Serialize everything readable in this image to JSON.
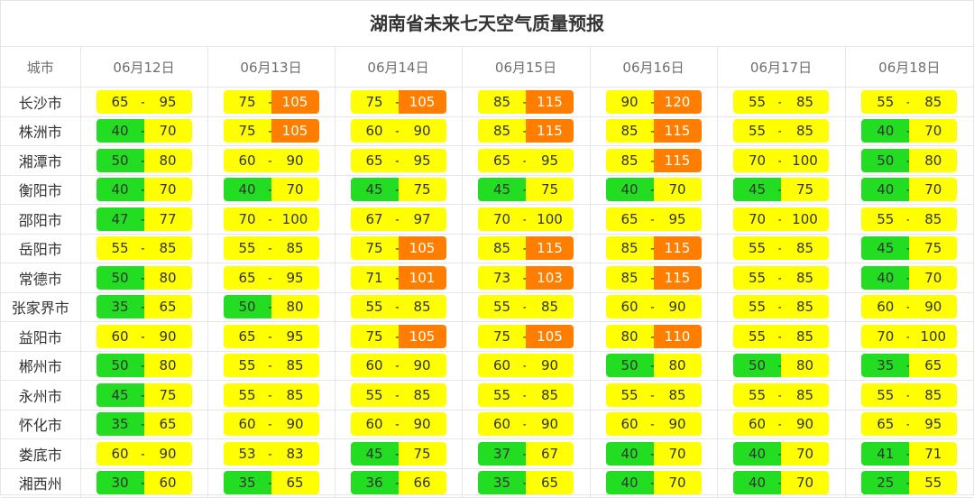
{
  "title": "湖南省未来七天空气质量预报",
  "header": {
    "city_label": "城市",
    "dates": [
      "06月12日",
      "06月13日",
      "06月14日",
      "06月15日",
      "06月16日",
      "06月17日",
      "06月18日"
    ]
  },
  "colors": {
    "good": "#22dd22",
    "moderate": "#ffff00",
    "unhealthy_sensitive": "#ff7e00"
  },
  "rows": [
    {
      "city": "长沙市",
      "ranges": [
        [
          65,
          95
        ],
        [
          75,
          105
        ],
        [
          75,
          105
        ],
        [
          85,
          115
        ],
        [
          90,
          120
        ],
        [
          55,
          85
        ],
        [
          55,
          85
        ]
      ]
    },
    {
      "city": "株洲市",
      "ranges": [
        [
          40,
          70
        ],
        [
          75,
          105
        ],
        [
          60,
          90
        ],
        [
          85,
          115
        ],
        [
          85,
          115
        ],
        [
          55,
          85
        ],
        [
          40,
          70
        ]
      ]
    },
    {
      "city": "湘潭市",
      "ranges": [
        [
          50,
          80
        ],
        [
          60,
          90
        ],
        [
          65,
          95
        ],
        [
          65,
          95
        ],
        [
          85,
          115
        ],
        [
          70,
          100
        ],
        [
          50,
          80
        ]
      ]
    },
    {
      "city": "衡阳市",
      "ranges": [
        [
          40,
          70
        ],
        [
          40,
          70
        ],
        [
          45,
          75
        ],
        [
          45,
          75
        ],
        [
          40,
          70
        ],
        [
          45,
          75
        ],
        [
          40,
          70
        ]
      ]
    },
    {
      "city": "邵阳市",
      "ranges": [
        [
          47,
          77
        ],
        [
          70,
          100
        ],
        [
          67,
          97
        ],
        [
          70,
          100
        ],
        [
          65,
          95
        ],
        [
          70,
          100
        ],
        [
          55,
          85
        ]
      ]
    },
    {
      "city": "岳阳市",
      "ranges": [
        [
          55,
          85
        ],
        [
          55,
          85
        ],
        [
          75,
          105
        ],
        [
          85,
          115
        ],
        [
          85,
          115
        ],
        [
          55,
          85
        ],
        [
          45,
          75
        ]
      ]
    },
    {
      "city": "常德市",
      "ranges": [
        [
          50,
          80
        ],
        [
          65,
          95
        ],
        [
          71,
          101
        ],
        [
          73,
          103
        ],
        [
          85,
          115
        ],
        [
          55,
          85
        ],
        [
          40,
          70
        ]
      ]
    },
    {
      "city": "张家界市",
      "ranges": [
        [
          35,
          65
        ],
        [
          50,
          80
        ],
        [
          55,
          85
        ],
        [
          55,
          85
        ],
        [
          60,
          90
        ],
        [
          55,
          85
        ],
        [
          60,
          90
        ]
      ]
    },
    {
      "city": "益阳市",
      "ranges": [
        [
          60,
          90
        ],
        [
          65,
          95
        ],
        [
          75,
          105
        ],
        [
          75,
          105
        ],
        [
          80,
          110
        ],
        [
          55,
          85
        ],
        [
          70,
          100
        ]
      ]
    },
    {
      "city": "郴州市",
      "ranges": [
        [
          50,
          80
        ],
        [
          55,
          85
        ],
        [
          60,
          90
        ],
        [
          60,
          90
        ],
        [
          50,
          80
        ],
        [
          50,
          80
        ],
        [
          35,
          65
        ]
      ]
    },
    {
      "city": "永州市",
      "ranges": [
        [
          45,
          75
        ],
        [
          55,
          85
        ],
        [
          55,
          85
        ],
        [
          55,
          85
        ],
        [
          55,
          85
        ],
        [
          55,
          85
        ],
        [
          55,
          85
        ]
      ]
    },
    {
      "city": "怀化市",
      "ranges": [
        [
          35,
          65
        ],
        [
          60,
          90
        ],
        [
          60,
          90
        ],
        [
          60,
          90
        ],
        [
          60,
          90
        ],
        [
          60,
          90
        ],
        [
          65,
          95
        ]
      ]
    },
    {
      "city": "娄底市",
      "ranges": [
        [
          60,
          90
        ],
        [
          53,
          83
        ],
        [
          45,
          75
        ],
        [
          37,
          67
        ],
        [
          40,
          70
        ],
        [
          40,
          70
        ],
        [
          41,
          71
        ]
      ]
    },
    {
      "city": "湘西州",
      "ranges": [
        [
          30,
          60
        ],
        [
          35,
          65
        ],
        [
          36,
          66
        ],
        [
          35,
          65
        ],
        [
          40,
          70
        ],
        [
          40,
          70
        ],
        [
          25,
          55
        ]
      ]
    }
  ]
}
